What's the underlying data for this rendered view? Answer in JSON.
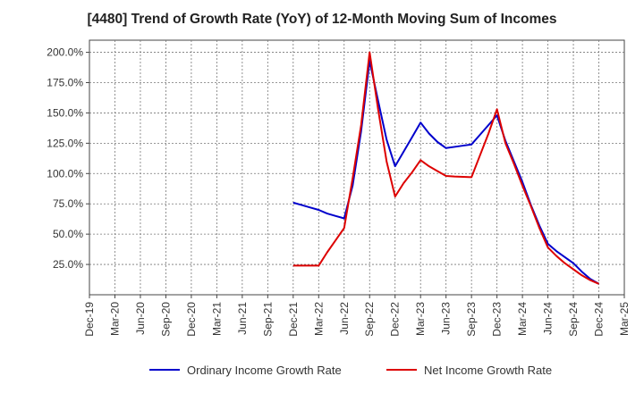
{
  "chart_data": {
    "type": "line",
    "title": "[4480]  Trend of Growth Rate (YoY) of 12-Month Moving Sum of Incomes",
    "xlabel": "",
    "ylabel": "",
    "x_ticks": [
      "Dec-19",
      "Mar-20",
      "Jun-20",
      "Sep-20",
      "Dec-20",
      "Mar-21",
      "Jun-21",
      "Sep-21",
      "Dec-21",
      "Mar-22",
      "Jun-22",
      "Sep-22",
      "Dec-22",
      "Mar-23",
      "Jun-23",
      "Sep-23",
      "Dec-23",
      "Mar-24",
      "Jun-24",
      "Sep-24",
      "Dec-24",
      "Mar-25"
    ],
    "y_ticks": [
      "25.0%",
      "50.0%",
      "75.0%",
      "100.0%",
      "125.0%",
      "150.0%",
      "175.0%",
      "200.0%"
    ],
    "ylim": [
      0,
      210
    ],
    "grid": true,
    "legend_position": "bottom",
    "series": [
      {
        "name": "Ordinary Income Growth Rate",
        "color": "#0000cc",
        "points": [
          [
            "Dec-21",
            76
          ],
          [
            "Jan-22",
            74
          ],
          [
            "Feb-22",
            72
          ],
          [
            "Mar-22",
            70
          ],
          [
            "Apr-22",
            67
          ],
          [
            "May-22",
            65
          ],
          [
            "Jun-22",
            63
          ],
          [
            "Jul-22",
            90
          ],
          [
            "Aug-22",
            135
          ],
          [
            "Sep-22",
            193
          ],
          [
            "Oct-22",
            160
          ],
          [
            "Nov-22",
            128
          ],
          [
            "Dec-22",
            106
          ],
          [
            "Jan-23",
            118
          ],
          [
            "Feb-23",
            130
          ],
          [
            "Mar-23",
            142
          ],
          [
            "Apr-23",
            133
          ],
          [
            "May-23",
            126
          ],
          [
            "Jun-23",
            121
          ],
          [
            "Jul-23",
            122
          ],
          [
            "Aug-23",
            123
          ],
          [
            "Sep-23",
            124
          ],
          [
            "Oct-23",
            132
          ],
          [
            "Nov-23",
            140
          ],
          [
            "Dec-23",
            148
          ],
          [
            "Jan-24",
            127
          ],
          [
            "Feb-24",
            110
          ],
          [
            "Mar-24",
            93
          ],
          [
            "Apr-24",
            74
          ],
          [
            "May-24",
            57
          ],
          [
            "Jun-24",
            42
          ],
          [
            "Jul-24",
            36
          ],
          [
            "Aug-24",
            31
          ],
          [
            "Sep-24",
            26
          ],
          [
            "Oct-24",
            19
          ],
          [
            "Nov-24",
            13
          ],
          [
            "Dec-24",
            9
          ]
        ]
      },
      {
        "name": "Net Income Growth Rate",
        "color": "#dd0000",
        "points": [
          [
            "Dec-21",
            24
          ],
          [
            "Jan-22",
            24
          ],
          [
            "Feb-22",
            24
          ],
          [
            "Mar-22",
            24
          ],
          [
            "Apr-22",
            35
          ],
          [
            "May-22",
            45
          ],
          [
            "Jun-22",
            55
          ],
          [
            "Jul-22",
            96
          ],
          [
            "Aug-22",
            140
          ],
          [
            "Sep-22",
            200
          ],
          [
            "Oct-22",
            153
          ],
          [
            "Nov-22",
            110
          ],
          [
            "Dec-22",
            81
          ],
          [
            "Jan-23",
            92
          ],
          [
            "Feb-23",
            101
          ],
          [
            "Mar-23",
            111
          ],
          [
            "Apr-23",
            106
          ],
          [
            "May-23",
            102
          ],
          [
            "Jun-23",
            98
          ],
          [
            "Jul-23",
            97.5
          ],
          [
            "Aug-23",
            97.3
          ],
          [
            "Sep-23",
            97
          ],
          [
            "Oct-23",
            115
          ],
          [
            "Nov-23",
            133
          ],
          [
            "Dec-23",
            153
          ],
          [
            "Jan-24",
            125
          ],
          [
            "Feb-24",
            108
          ],
          [
            "Mar-24",
            90
          ],
          [
            "Apr-24",
            73
          ],
          [
            "May-24",
            55
          ],
          [
            "Jun-24",
            39
          ],
          [
            "Jul-24",
            32
          ],
          [
            "Aug-24",
            26
          ],
          [
            "Sep-24",
            21
          ],
          [
            "Oct-24",
            16
          ],
          [
            "Nov-24",
            12
          ],
          [
            "Dec-24",
            9
          ]
        ]
      }
    ]
  }
}
